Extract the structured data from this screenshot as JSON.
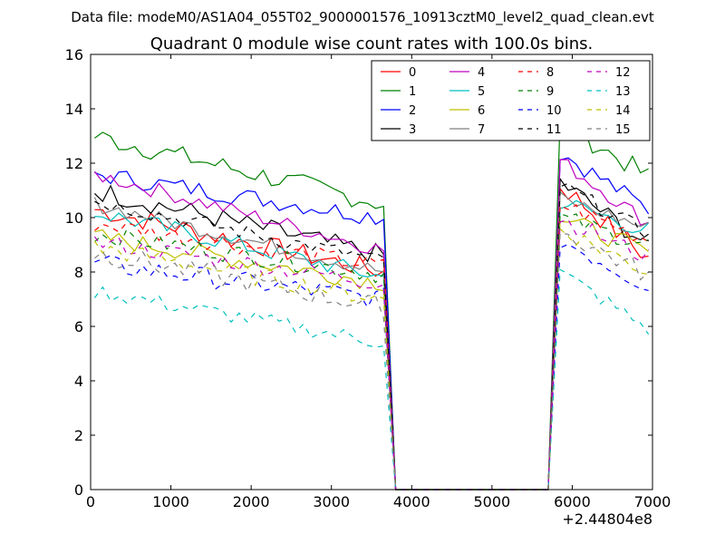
{
  "suptitle": "Data file: modeM0/AS1A04_055T02_9000001576_10913cztM0_level2_quad_clean.evt",
  "chart_data": {
    "type": "line",
    "title": "Quadrant 0 module wise count rates with 100.0s bins.",
    "xlabel": "",
    "ylabel": "",
    "x_offset_label": "+2.44804e8",
    "xlim": [
      0,
      7000
    ],
    "ylim": [
      0,
      16
    ],
    "x_ticks": [
      0,
      1000,
      2000,
      3000,
      4000,
      5000,
      6000,
      7000
    ],
    "y_ticks": [
      0,
      2,
      4,
      6,
      8,
      10,
      12,
      14,
      16
    ],
    "legend_location": "upper right",
    "legend_columns": 4,
    "gap": {
      "drop_start": 3650,
      "zero_start": 3800,
      "zero_end": 5700,
      "rise_end": 5850
    },
    "x_first_segment": [
      50,
      150,
      250,
      350,
      450,
      550,
      650,
      750,
      850,
      950,
      1050,
      1150,
      1250,
      1350,
      1450,
      1550,
      1650,
      1750,
      1850,
      1950,
      2050,
      2150,
      2250,
      2350,
      2450,
      2550,
      2650,
      2750,
      2850,
      2950,
      3050,
      3150,
      3250,
      3350,
      3450,
      3550,
      3650
    ],
    "x_second_segment": [
      5850,
      5950,
      6050,
      6150,
      6250,
      6350,
      6450,
      6550,
      6650,
      6750,
      6850,
      6950
    ],
    "series": [
      {
        "name": "0",
        "color": "#ff0000",
        "dash": "solid",
        "start": 10.3,
        "end": 8.0,
        "after": 11.2,
        "after_end": 8.5,
        "noise": 0.4
      },
      {
        "name": "1",
        "color": "#008000",
        "dash": "solid",
        "start": 13.0,
        "end": 10.5,
        "after": 13.5,
        "after_end": 11.5,
        "noise": 0.4
      },
      {
        "name": "2",
        "color": "#0000ff",
        "dash": "solid",
        "start": 11.6,
        "end": 10.0,
        "after": 12.4,
        "after_end": 10.3,
        "noise": 0.35
      },
      {
        "name": "3",
        "color": "#000000",
        "dash": "solid",
        "start": 11.0,
        "end": 8.6,
        "after": 11.3,
        "after_end": 9.0,
        "noise": 0.4
      },
      {
        "name": "4",
        "color": "#bf00bf",
        "dash": "solid",
        "start": 11.6,
        "end": 8.8,
        "after": 12.1,
        "after_end": 9.8,
        "noise": 0.3
      },
      {
        "name": "5",
        "color": "#00bfbf",
        "dash": "solid",
        "start": 10.2,
        "end": 7.8,
        "after": 10.6,
        "after_end": 9.5,
        "noise": 0.35
      },
      {
        "name": "6",
        "color": "#bfbf00",
        "dash": "solid",
        "start": 9.3,
        "end": 7.6,
        "after": 10.0,
        "after_end": 8.7,
        "noise": 0.35
      },
      {
        "name": "7",
        "color": "#808080",
        "dash": "solid",
        "start": 10.5,
        "end": 8.0,
        "after": 10.7,
        "after_end": 9.6,
        "noise": 0.3
      },
      {
        "name": "8",
        "color": "#ff0000",
        "dash": "dashed",
        "start": 9.8,
        "end": 8.2,
        "after": 10.5,
        "after_end": 9.2,
        "noise": 0.35
      },
      {
        "name": "9",
        "color": "#008000",
        "dash": "dashed",
        "start": 9.4,
        "end": 7.9,
        "after": 10.0,
        "after_end": 9.0,
        "noise": 0.35
      },
      {
        "name": "10",
        "color": "#0000ff",
        "dash": "dashed",
        "start": 8.3,
        "end": 7.0,
        "after": 9.2,
        "after_end": 7.5,
        "noise": 0.4
      },
      {
        "name": "11",
        "color": "#000000",
        "dash": "dashed",
        "start": 10.6,
        "end": 8.4,
        "after": 11.2,
        "after_end": 9.4,
        "noise": 0.3
      },
      {
        "name": "12",
        "color": "#bf00bf",
        "dash": "dashed",
        "start": 9.1,
        "end": 7.6,
        "after": 10.0,
        "after_end": 8.5,
        "noise": 0.35
      },
      {
        "name": "13",
        "color": "#00bfbf",
        "dash": "dashed",
        "start": 7.3,
        "end": 5.4,
        "after": 8.0,
        "after_end": 5.9,
        "noise": 0.3
      },
      {
        "name": "14",
        "color": "#bfbf00",
        "dash": "dashed",
        "start": 8.9,
        "end": 7.0,
        "after": 9.6,
        "after_end": 8.0,
        "noise": 0.35
      },
      {
        "name": "15",
        "color": "#808080",
        "dash": "dashed",
        "start": 8.7,
        "end": 6.7,
        "after": 9.5,
        "after_end": 7.9,
        "noise": 0.4
      }
    ]
  }
}
